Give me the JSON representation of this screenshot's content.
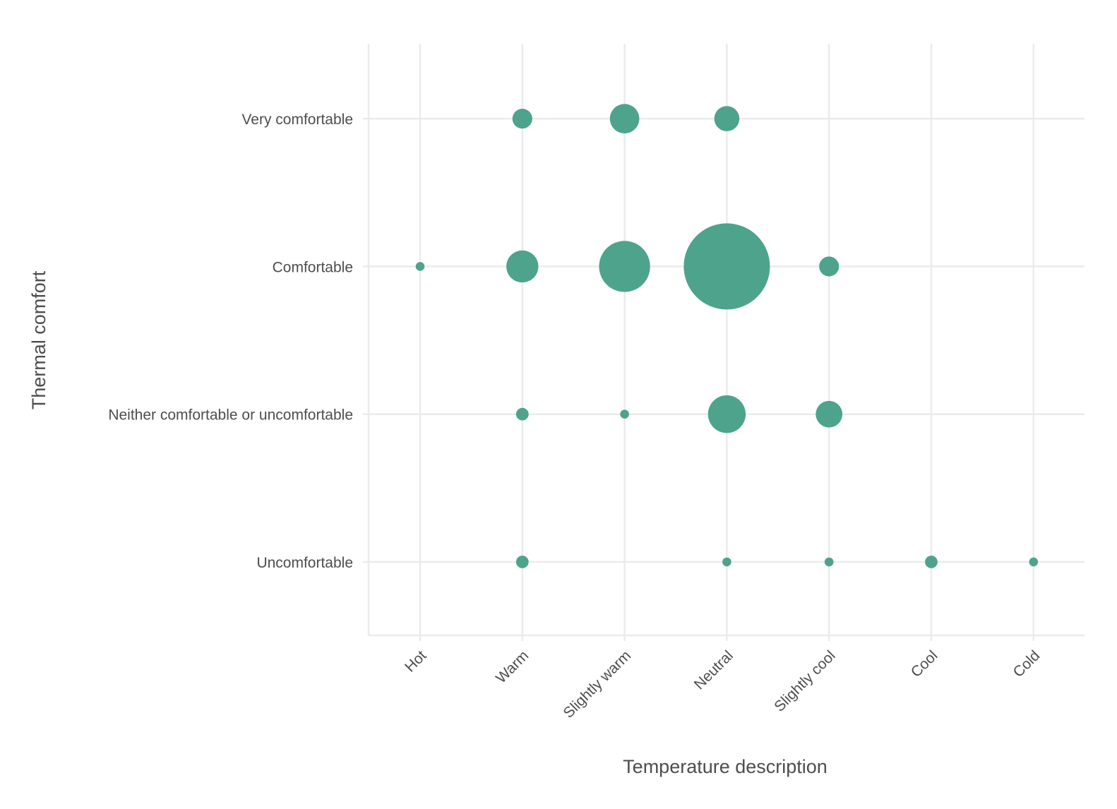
{
  "chart_data": {
    "type": "scatter",
    "subtype": "bubble",
    "title": "",
    "xlabel": "Temperature description",
    "ylabel": "Thermal comfort",
    "x_categories": [
      "Hot",
      "Warm",
      "Slightly warm",
      "Neutral",
      "Slightly cool",
      "Cool",
      "Cold"
    ],
    "y_categories": [
      "Uncomfortable",
      "Neither comfortable or uncomfortable",
      "Comfortable",
      "Very comfortable"
    ],
    "grid": true,
    "legend": "none",
    "color": "#4ea38d",
    "points": [
      {
        "x": "Warm",
        "y": "Very comfortable",
        "count": 5
      },
      {
        "x": "Slightly warm",
        "y": "Very comfortable",
        "count": 11
      },
      {
        "x": "Neutral",
        "y": "Very comfortable",
        "count": 8
      },
      {
        "x": "Hot",
        "y": "Comfortable",
        "count": 1
      },
      {
        "x": "Warm",
        "y": "Comfortable",
        "count": 13
      },
      {
        "x": "Slightly warm",
        "y": "Comfortable",
        "count": 33
      },
      {
        "x": "Neutral",
        "y": "Comfortable",
        "count": 94
      },
      {
        "x": "Slightly cool",
        "y": "Comfortable",
        "count": 5
      },
      {
        "x": "Warm",
        "y": "Neither comfortable or uncomfortable",
        "count": 2
      },
      {
        "x": "Slightly warm",
        "y": "Neither comfortable or uncomfortable",
        "count": 1
      },
      {
        "x": "Neutral",
        "y": "Neither comfortable or uncomfortable",
        "count": 18
      },
      {
        "x": "Slightly cool",
        "y": "Neither comfortable or uncomfortable",
        "count": 9
      },
      {
        "x": "Warm",
        "y": "Uncomfortable",
        "count": 2
      },
      {
        "x": "Neutral",
        "y": "Uncomfortable",
        "count": 1
      },
      {
        "x": "Slightly cool",
        "y": "Uncomfortable",
        "count": 1
      },
      {
        "x": "Cool",
        "y": "Uncomfortable",
        "count": 2
      },
      {
        "x": "Cold",
        "y": "Uncomfortable",
        "count": 1
      }
    ]
  }
}
